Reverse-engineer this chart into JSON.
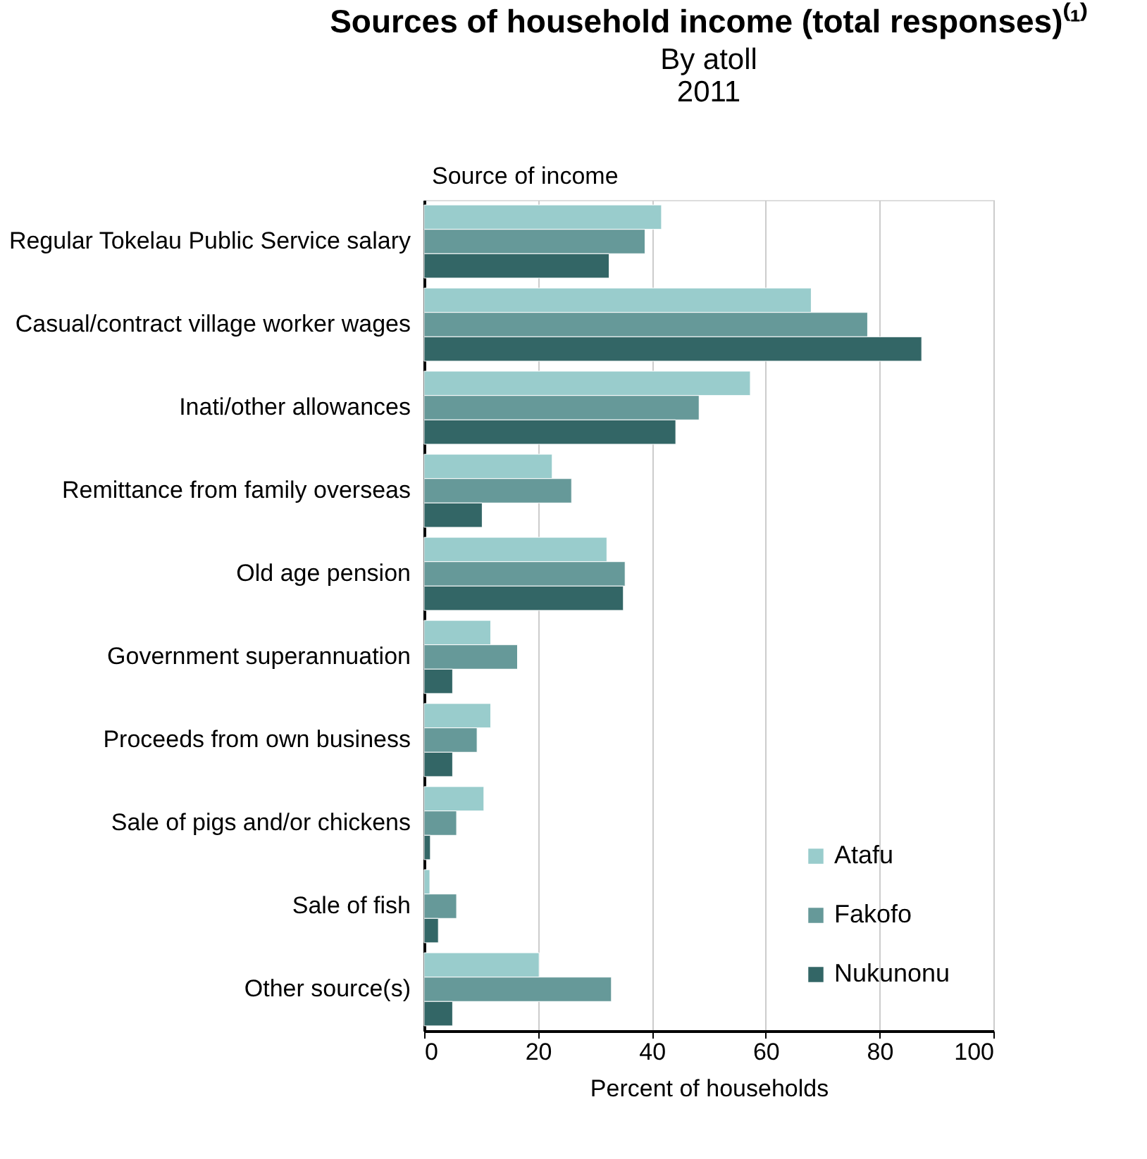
{
  "chart_data": {
    "type": "bar",
    "orientation": "horizontal",
    "title": "Sources of household income (total responses)⁽¹⁾",
    "subtitle": [
      "By atoll",
      "2011"
    ],
    "ylabel": "Source of income",
    "xlabel": "Percent of households",
    "categories": [
      "Regular Tokelau Public Service salary",
      "Casual/contract village worker wages",
      "Inati/other allowances",
      "Remittance from family overseas",
      "Old age pension",
      "Government superannuation",
      "Proceeds from own business",
      "Sale of pigs and/or chickens",
      "Sale of fish",
      "Other source(s)"
    ],
    "series": [
      {
        "name": "Atafu",
        "color": "#99cccc",
        "values": [
          41.7,
          68.0,
          57.3,
          22.5,
          32.1,
          11.7,
          11.7,
          10.5,
          1.0,
          20.2
        ]
      },
      {
        "name": "Fakofo",
        "color": "#669999",
        "values": [
          38.8,
          77.9,
          48.3,
          25.9,
          35.3,
          16.4,
          9.3,
          5.7,
          5.7,
          32.9
        ]
      },
      {
        "name": "Nukunonu",
        "color": "#336666",
        "values": [
          32.5,
          87.4,
          44.2,
          10.2,
          35.0,
          5.0,
          5.0,
          1.1,
          2.5,
          5.0
        ]
      }
    ],
    "xlim": [
      0,
      100
    ],
    "xticks": [
      0,
      20,
      40,
      60,
      80,
      100
    ],
    "grid": "x",
    "legend": "bottom right"
  }
}
